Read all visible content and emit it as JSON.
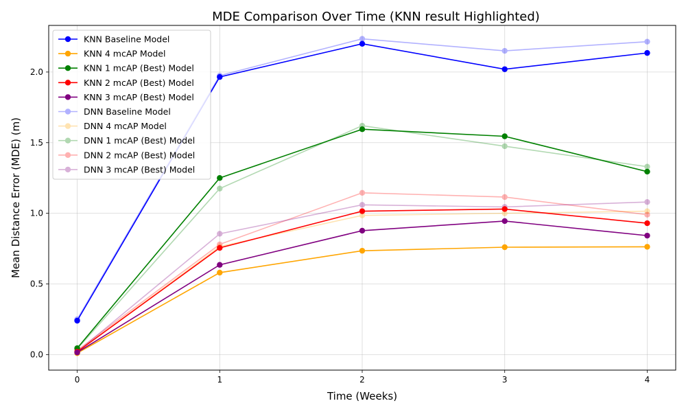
{
  "chart_data": {
    "type": "line",
    "title": "MDE Comparison Over Time (KNN result Highlighted)",
    "xlabel": "Time (Weeks)",
    "ylabel": "Mean Distance Error (MDE) (m)",
    "x": [
      0,
      1,
      2,
      3,
      4
    ],
    "x_ticks": [
      "0",
      "1",
      "2",
      "3",
      "4"
    ],
    "y_ticks": [
      "0.0",
      "0.5",
      "1.0",
      "1.5",
      "2.0"
    ],
    "xlim": [
      -0.2,
      4.2
    ],
    "ylim": [
      -0.11,
      2.33
    ],
    "grid": true,
    "legend_position": "top-left",
    "series": [
      {
        "name": "KNN Baseline Model",
        "color": "#0000ff",
        "alpha": 1.0,
        "values": [
          0.24,
          1.965,
          2.2,
          2.02,
          2.135
        ]
      },
      {
        "name": "KNN 4 mcAP Model",
        "color": "#ffa500",
        "alpha": 1.0,
        "values": [
          0.01,
          0.58,
          0.735,
          0.76,
          0.763
        ]
      },
      {
        "name": "KNN 1 mcAP (Best) Model",
        "color": "#008000",
        "alpha": 1.0,
        "values": [
          0.045,
          1.25,
          1.595,
          1.545,
          1.295
        ]
      },
      {
        "name": "KNN 2 mcAP (Best) Model",
        "color": "#ff0000",
        "alpha": 1.0,
        "values": [
          0.02,
          0.755,
          1.015,
          1.03,
          0.93
        ]
      },
      {
        "name": "KNN 3 mcAP (Best) Model",
        "color": "#800080",
        "alpha": 1.0,
        "values": [
          0.015,
          0.635,
          0.877,
          0.945,
          0.842
        ]
      },
      {
        "name": "DNN Baseline Model",
        "color": "#0000ff",
        "alpha": 0.3,
        "values": [
          0.25,
          1.975,
          2.235,
          2.15,
          2.215
        ]
      },
      {
        "name": "DNN 4 mcAP Model",
        "color": "#ffa500",
        "alpha": 0.3,
        "values": [
          0.02,
          0.765,
          0.985,
          1.0,
          1.015
        ]
      },
      {
        "name": "DNN 1 mcAP (Best) Model",
        "color": "#008000",
        "alpha": 0.3,
        "values": [
          0.04,
          1.175,
          1.62,
          1.475,
          1.33
        ]
      },
      {
        "name": "DNN 2 mcAP (Best) Model",
        "color": "#ff0000",
        "alpha": 0.3,
        "values": [
          0.03,
          0.78,
          1.145,
          1.115,
          0.99
        ]
      },
      {
        "name": "DNN 3 mcAP (Best) Model",
        "color": "#800080",
        "alpha": 0.3,
        "values": [
          0.02,
          0.855,
          1.06,
          1.045,
          1.08
        ]
      }
    ]
  }
}
